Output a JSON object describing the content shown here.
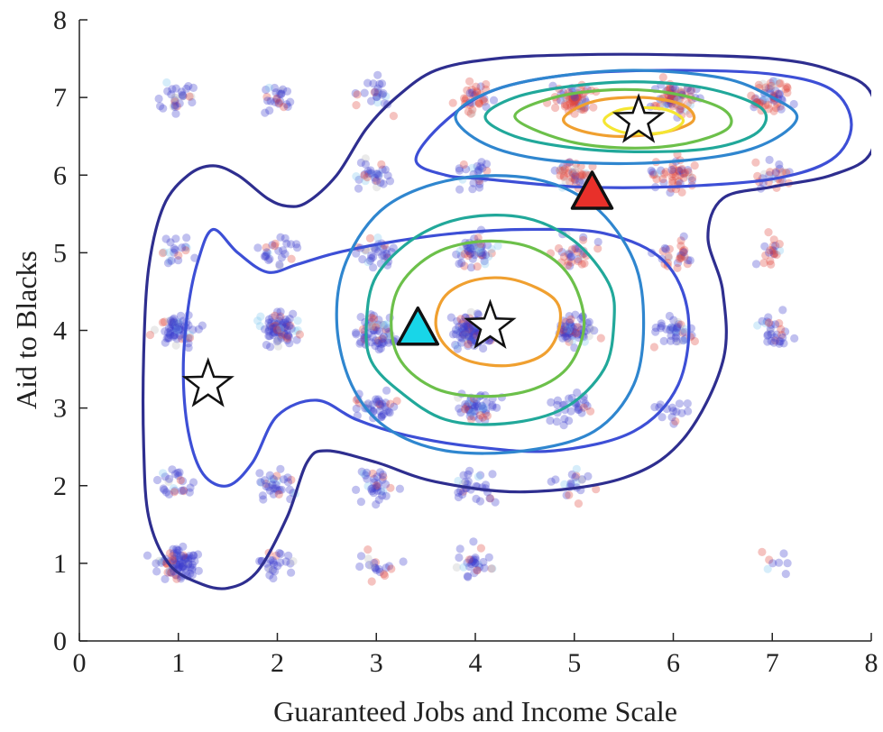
{
  "chart_data": {
    "type": "scatter",
    "title": "",
    "xlabel": "Guaranteed Jobs and Income Scale",
    "ylabel": "Aid to Blacks",
    "xlim": [
      0,
      8
    ],
    "ylim": [
      0,
      8
    ],
    "xticks": [
      "0",
      "1",
      "2",
      "3",
      "4",
      "5",
      "6",
      "7",
      "8"
    ],
    "yticks": [
      "0",
      "1",
      "2",
      "3",
      "4",
      "5",
      "6",
      "7",
      "8"
    ],
    "grid": false,
    "legend": "none",
    "colors": {
      "blue_points": "#3a3acc",
      "red_points": "#e0443a",
      "light_blue_points": "#7ec8ee",
      "gray_points": "#bfbfbf",
      "axis": "#222222"
    },
    "point_clusters": [
      {
        "x": 1,
        "y": 1,
        "n": 90,
        "color": "blue_points"
      },
      {
        "x": 1,
        "y": 4,
        "n": 70,
        "color": "blue_points"
      },
      {
        "x": 1,
        "y": 7,
        "n": 30,
        "color": "blue_points"
      },
      {
        "x": 1,
        "y": 2,
        "n": 25,
        "color": "blue_points"
      },
      {
        "x": 1,
        "y": 5,
        "n": 20,
        "color": "blue_points"
      },
      {
        "x": 2,
        "y": 4,
        "n": 80,
        "color": "blue_points"
      },
      {
        "x": 2,
        "y": 1,
        "n": 25,
        "color": "blue_points"
      },
      {
        "x": 2,
        "y": 2,
        "n": 35,
        "color": "blue_points"
      },
      {
        "x": 2,
        "y": 5,
        "n": 25,
        "color": "blue_points"
      },
      {
        "x": 2,
        "y": 7,
        "n": 25,
        "color": "blue_points"
      },
      {
        "x": 3,
        "y": 4,
        "n": 70,
        "color": "blue_points"
      },
      {
        "x": 3,
        "y": 3,
        "n": 40,
        "color": "blue_points"
      },
      {
        "x": 3,
        "y": 2,
        "n": 35,
        "color": "blue_points"
      },
      {
        "x": 3,
        "y": 5,
        "n": 35,
        "color": "blue_points"
      },
      {
        "x": 3,
        "y": 6,
        "n": 30,
        "color": "blue_points"
      },
      {
        "x": 3,
        "y": 7,
        "n": 25,
        "color": "blue_points"
      },
      {
        "x": 3,
        "y": 1,
        "n": 20,
        "color": "blue_points"
      },
      {
        "x": 4,
        "y": 4,
        "n": 140,
        "color": "blue_points"
      },
      {
        "x": 4,
        "y": 3,
        "n": 55,
        "color": "blue_points"
      },
      {
        "x": 4,
        "y": 5,
        "n": 55,
        "color": "blue_points"
      },
      {
        "x": 4,
        "y": 2,
        "n": 30,
        "color": "blue_points"
      },
      {
        "x": 4,
        "y": 1,
        "n": 30,
        "color": "blue_points"
      },
      {
        "x": 4,
        "y": 6,
        "n": 25,
        "color": "blue_points"
      },
      {
        "x": 4,
        "y": 7,
        "n": 35,
        "color": "red_points"
      },
      {
        "x": 5,
        "y": 4,
        "n": 70,
        "color": "blue_points"
      },
      {
        "x": 5,
        "y": 3,
        "n": 30,
        "color": "blue_points"
      },
      {
        "x": 5,
        "y": 5,
        "n": 35,
        "color": "red_points"
      },
      {
        "x": 5,
        "y": 6,
        "n": 45,
        "color": "red_points"
      },
      {
        "x": 5,
        "y": 7,
        "n": 70,
        "color": "red_points"
      },
      {
        "x": 5,
        "y": 2,
        "n": 20,
        "color": "blue_points"
      },
      {
        "x": 6,
        "y": 7,
        "n": 80,
        "color": "red_points"
      },
      {
        "x": 6,
        "y": 6,
        "n": 50,
        "color": "red_points"
      },
      {
        "x": 6,
        "y": 4,
        "n": 40,
        "color": "blue_points"
      },
      {
        "x": 6,
        "y": 5,
        "n": 30,
        "color": "red_points"
      },
      {
        "x": 6,
        "y": 3,
        "n": 15,
        "color": "blue_points"
      },
      {
        "x": 7,
        "y": 7,
        "n": 60,
        "color": "red_points"
      },
      {
        "x": 7,
        "y": 4,
        "n": 30,
        "color": "blue_points"
      },
      {
        "x": 7,
        "y": 5,
        "n": 20,
        "color": "red_points"
      },
      {
        "x": 7,
        "y": 6,
        "n": 25,
        "color": "red_points"
      },
      {
        "x": 7,
        "y": 1,
        "n": 8,
        "color": "blue_points"
      }
    ],
    "contours": [
      {
        "color": "#2e2e8f",
        "points": [
          [
            1.6,
            6.0
          ],
          [
            1.9,
            5.7
          ],
          [
            2.1,
            5.6
          ],
          [
            2.3,
            5.65
          ],
          [
            2.6,
            6.0
          ],
          [
            2.9,
            6.6
          ],
          [
            3.2,
            7.0
          ],
          [
            3.6,
            7.35
          ],
          [
            4.2,
            7.5
          ],
          [
            5.0,
            7.55
          ],
          [
            6.0,
            7.55
          ],
          [
            7.0,
            7.5
          ],
          [
            7.6,
            7.35
          ],
          [
            8.0,
            7.05
          ],
          [
            8.0,
            6.3
          ],
          [
            7.6,
            6.0
          ],
          [
            7.0,
            5.85
          ],
          [
            6.5,
            5.7
          ],
          [
            6.35,
            5.2
          ],
          [
            6.5,
            4.5
          ],
          [
            6.5,
            3.6
          ],
          [
            6.1,
            2.6
          ],
          [
            5.5,
            2.1
          ],
          [
            4.5,
            1.92
          ],
          [
            3.6,
            2.05
          ],
          [
            3.0,
            2.3
          ],
          [
            2.5,
            2.45
          ],
          [
            2.3,
            2.3
          ],
          [
            2.1,
            1.6
          ],
          [
            1.8,
            0.9
          ],
          [
            1.5,
            0.68
          ],
          [
            1.2,
            0.75
          ],
          [
            0.9,
            1.0
          ],
          [
            0.7,
            1.6
          ],
          [
            0.65,
            2.5
          ],
          [
            0.65,
            3.7
          ],
          [
            0.7,
            4.8
          ],
          [
            0.85,
            5.6
          ],
          [
            1.1,
            6.0
          ],
          [
            1.35,
            6.12
          ],
          [
            1.6,
            6.0
          ]
        ]
      },
      {
        "color": "#3d4fd6",
        "points": [
          [
            1.35,
            5.3
          ],
          [
            1.6,
            5.0
          ],
          [
            1.9,
            4.75
          ],
          [
            2.2,
            4.85
          ],
          [
            2.6,
            5.0
          ],
          [
            3.2,
            5.15
          ],
          [
            3.8,
            5.25
          ],
          [
            4.5,
            5.3
          ],
          [
            5.3,
            5.25
          ],
          [
            5.9,
            4.9
          ],
          [
            6.15,
            4.2
          ],
          [
            6.05,
            3.3
          ],
          [
            5.6,
            2.7
          ],
          [
            4.8,
            2.45
          ],
          [
            4.0,
            2.5
          ],
          [
            3.3,
            2.65
          ],
          [
            2.8,
            2.85
          ],
          [
            2.4,
            3.1
          ],
          [
            2.0,
            2.9
          ],
          [
            1.75,
            2.3
          ],
          [
            1.5,
            2.0
          ],
          [
            1.25,
            2.15
          ],
          [
            1.1,
            2.7
          ],
          [
            1.05,
            3.5
          ],
          [
            1.1,
            4.3
          ],
          [
            1.2,
            4.9
          ],
          [
            1.35,
            5.3
          ]
        ]
      },
      {
        "color": "#3d4fd6",
        "points": [
          [
            3.4,
            6.2
          ],
          [
            3.7,
            6.0
          ],
          [
            4.1,
            5.95
          ],
          [
            5.0,
            5.85
          ],
          [
            6.0,
            5.85
          ],
          [
            7.0,
            5.95
          ],
          [
            7.6,
            6.2
          ],
          [
            7.8,
            6.65
          ],
          [
            7.6,
            7.1
          ],
          [
            7.0,
            7.3
          ],
          [
            6.0,
            7.35
          ],
          [
            5.0,
            7.3
          ],
          [
            4.2,
            7.1
          ],
          [
            3.7,
            6.7
          ],
          [
            3.4,
            6.2
          ]
        ]
      },
      {
        "color": "#2f86cf",
        "points": [
          [
            2.6,
            4.1
          ],
          [
            2.7,
            4.9
          ],
          [
            3.1,
            5.6
          ],
          [
            3.8,
            5.95
          ],
          [
            4.6,
            5.95
          ],
          [
            5.2,
            5.6
          ],
          [
            5.6,
            4.9
          ],
          [
            5.7,
            4.1
          ],
          [
            5.6,
            3.3
          ],
          [
            5.2,
            2.7
          ],
          [
            4.5,
            2.45
          ],
          [
            3.7,
            2.45
          ],
          [
            3.1,
            2.75
          ],
          [
            2.75,
            3.3
          ],
          [
            2.6,
            4.1
          ]
        ]
      },
      {
        "color": "#2f86cf",
        "points": [
          [
            3.8,
            6.75
          ],
          [
            4.1,
            7.05
          ],
          [
            4.7,
            7.25
          ],
          [
            5.6,
            7.35
          ],
          [
            6.5,
            7.25
          ],
          [
            7.0,
            7.0
          ],
          [
            7.25,
            6.75
          ],
          [
            7.0,
            6.45
          ],
          [
            6.5,
            6.25
          ],
          [
            5.6,
            6.15
          ],
          [
            4.7,
            6.2
          ],
          [
            4.1,
            6.4
          ],
          [
            3.8,
            6.75
          ]
        ]
      },
      {
        "color": "#21a89a",
        "points": [
          [
            2.9,
            4.1
          ],
          [
            3.0,
            4.7
          ],
          [
            3.4,
            5.2
          ],
          [
            3.9,
            5.45
          ],
          [
            4.5,
            5.45
          ],
          [
            5.0,
            5.15
          ],
          [
            5.35,
            4.6
          ],
          [
            5.4,
            4.1
          ],
          [
            5.3,
            3.5
          ],
          [
            4.9,
            3.0
          ],
          [
            4.3,
            2.8
          ],
          [
            3.7,
            2.85
          ],
          [
            3.25,
            3.2
          ],
          [
            2.95,
            3.6
          ],
          [
            2.9,
            4.1
          ]
        ]
      },
      {
        "color": "#21a89a",
        "points": [
          [
            4.1,
            6.75
          ],
          [
            4.4,
            7.0
          ],
          [
            5.0,
            7.15
          ],
          [
            5.7,
            7.2
          ],
          [
            6.4,
            7.1
          ],
          [
            6.9,
            6.85
          ],
          [
            6.85,
            6.55
          ],
          [
            6.4,
            6.35
          ],
          [
            5.7,
            6.3
          ],
          [
            5.0,
            6.35
          ],
          [
            4.4,
            6.5
          ],
          [
            4.1,
            6.75
          ]
        ]
      },
      {
        "color": "#6cc04a",
        "points": [
          [
            3.15,
            4.1
          ],
          [
            3.25,
            4.6
          ],
          [
            3.6,
            5.0
          ],
          [
            4.1,
            5.15
          ],
          [
            4.6,
            5.05
          ],
          [
            4.95,
            4.7
          ],
          [
            5.1,
            4.1
          ],
          [
            4.95,
            3.55
          ],
          [
            4.6,
            3.25
          ],
          [
            4.1,
            3.15
          ],
          [
            3.6,
            3.25
          ],
          [
            3.25,
            3.6
          ],
          [
            3.15,
            4.1
          ]
        ]
      },
      {
        "color": "#6cc04a",
        "points": [
          [
            4.4,
            6.75
          ],
          [
            4.8,
            7.0
          ],
          [
            5.4,
            7.1
          ],
          [
            6.0,
            7.05
          ],
          [
            6.5,
            6.85
          ],
          [
            6.55,
            6.6
          ],
          [
            6.1,
            6.4
          ],
          [
            5.5,
            6.35
          ],
          [
            4.9,
            6.45
          ],
          [
            4.4,
            6.75
          ]
        ]
      },
      {
        "color": "#f0a030",
        "points": [
          [
            3.6,
            4.1
          ],
          [
            3.7,
            4.45
          ],
          [
            4.0,
            4.65
          ],
          [
            4.4,
            4.65
          ],
          [
            4.8,
            4.4
          ],
          [
            4.85,
            4.05
          ],
          [
            4.7,
            3.7
          ],
          [
            4.35,
            3.55
          ],
          [
            3.95,
            3.6
          ],
          [
            3.7,
            3.8
          ],
          [
            3.6,
            4.1
          ]
        ]
      },
      {
        "color": "#f0a030",
        "points": [
          [
            4.9,
            6.75
          ],
          [
            5.2,
            6.95
          ],
          [
            5.7,
            7.0
          ],
          [
            6.1,
            6.9
          ],
          [
            6.2,
            6.7
          ],
          [
            5.9,
            6.55
          ],
          [
            5.4,
            6.5
          ],
          [
            5.0,
            6.6
          ],
          [
            4.9,
            6.75
          ]
        ]
      },
      {
        "color": "#f5e632",
        "points": [
          [
            5.3,
            6.7
          ],
          [
            5.5,
            6.85
          ],
          [
            5.9,
            6.85
          ],
          [
            6.1,
            6.7
          ],
          [
            5.9,
            6.55
          ],
          [
            5.5,
            6.55
          ],
          [
            5.3,
            6.7
          ]
        ]
      }
    ],
    "markers": [
      {
        "shape": "star",
        "x": 1.3,
        "y": 3.3,
        "fill": "#ffffff",
        "stroke": "#111111"
      },
      {
        "shape": "star",
        "x": 4.15,
        "y": 4.05,
        "fill": "#ffffff",
        "stroke": "#111111"
      },
      {
        "shape": "star",
        "x": 5.65,
        "y": 6.7,
        "fill": "#ffffff",
        "stroke": "#111111"
      },
      {
        "shape": "triangle",
        "x": 3.42,
        "y": 4.0,
        "fill": "#18d6e8",
        "stroke": "#111111"
      },
      {
        "shape": "triangle",
        "x": 5.18,
        "y": 5.75,
        "fill": "#e8302a",
        "stroke": "#111111"
      }
    ]
  }
}
